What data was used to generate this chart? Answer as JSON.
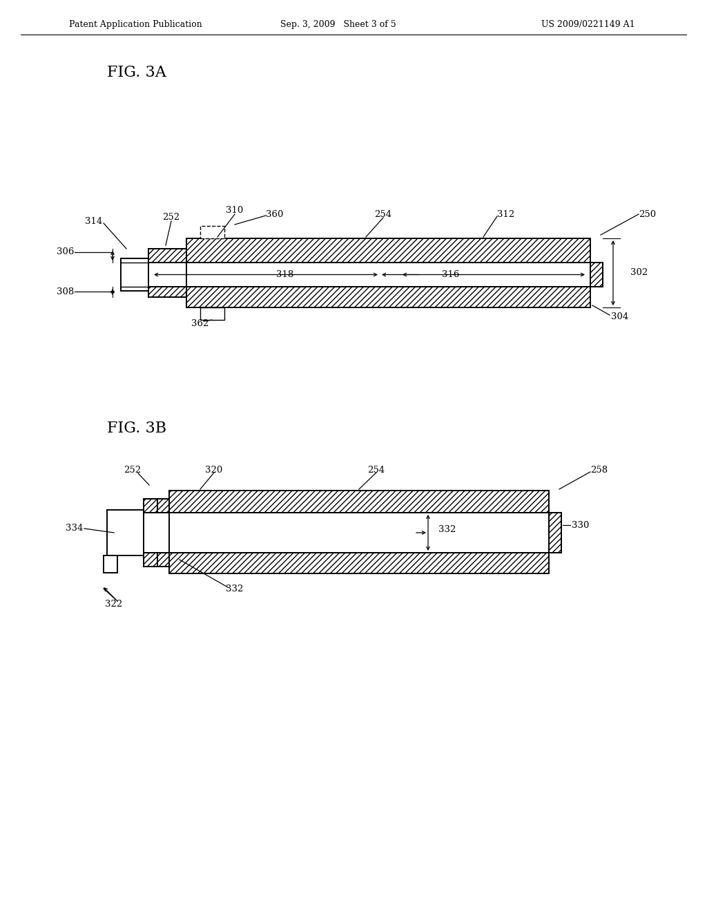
{
  "bg_color": "#ffffff",
  "header_left": "Patent Application Publication",
  "header_mid": "Sep. 3, 2009   Sheet 3 of 5",
  "header_right": "US 2009/0221149 A1",
  "fig3a_title": "FIG. 3A",
  "fig3b_title": "FIG. 3B",
  "line_color": "#000000",
  "label_fontsize": 9.5,
  "title_fontsize": 16
}
